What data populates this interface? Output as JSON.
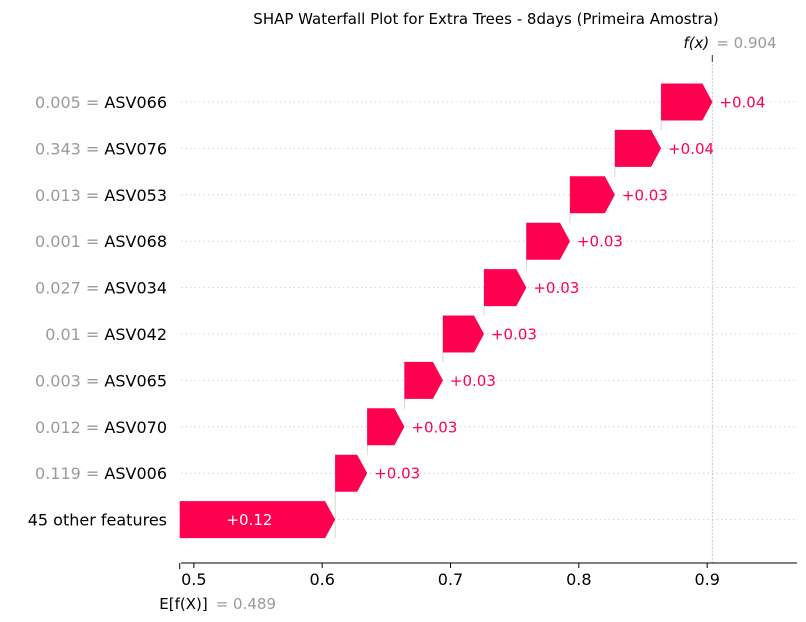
{
  "chart_data": {
    "type": "bar",
    "title": "SHAP Waterfall Plot for Extra Trees - 8days (Primeira Amostra)",
    "base_value": 0.489,
    "output_value": 0.904,
    "base_label": "E[f(X)]",
    "output_label": "f(x)",
    "base_value_text": "= 0.489",
    "output_value_text": "= 0.904",
    "xlim": [
      0.49,
      0.97
    ],
    "xticks": [
      0.5,
      0.6,
      0.7,
      0.8,
      0.9
    ],
    "xtick_labels": [
      "0.5",
      "0.6",
      "0.7",
      "0.8",
      "0.9"
    ],
    "positive_color": "#ff0051",
    "features": [
      {
        "value": "0.005 =",
        "name": "ASV066",
        "shap": 0.04,
        "label": "+0.04",
        "start": 0.8641
      },
      {
        "value": "0.343 =",
        "name": "ASV076",
        "shap": 0.036,
        "label": "+0.04",
        "start": 0.8281
      },
      {
        "value": "0.013 =",
        "name": "ASV053",
        "shap": 0.035,
        "label": "+0.03",
        "start": 0.7931
      },
      {
        "value": "0.001 =",
        "name": "ASV068",
        "shap": 0.034,
        "label": "+0.03",
        "start": 0.7591
      },
      {
        "value": "0.027 =",
        "name": "ASV034",
        "shap": 0.033,
        "label": "+0.03",
        "start": 0.7261
      },
      {
        "value": "0.01 =",
        "name": "ASV042",
        "shap": 0.032,
        "label": "+0.03",
        "start": 0.6941
      },
      {
        "value": "0.003 =",
        "name": "ASV065",
        "shap": 0.03,
        "label": "+0.03",
        "start": 0.6641
      },
      {
        "value": "0.012 =",
        "name": "ASV070",
        "shap": 0.029,
        "label": "+0.03",
        "start": 0.6351
      },
      {
        "value": "0.119 =",
        "name": "ASV006",
        "shap": 0.025,
        "label": "+0.03",
        "start": 0.6101
      },
      {
        "value": "",
        "name": "45 other features",
        "shap": 0.1211,
        "label": "+0.12",
        "start": 0.489
      }
    ]
  }
}
